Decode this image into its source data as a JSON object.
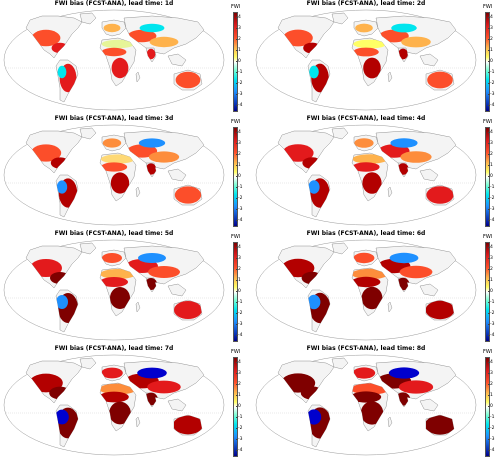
{
  "colorbar": {
    "label": "FWI",
    "ticks": [
      "4",
      "3",
      "2",
      "1",
      "0",
      "-1",
      "-2",
      "-3",
      "-4"
    ],
    "colors": [
      "#7f0000",
      "#b30000",
      "#e31a1c",
      "#fc4e2a",
      "#fd8d3c",
      "#feb24c",
      "#fed976",
      "#ffff66",
      "#e6f598",
      "#ffffff",
      "#7fffd4",
      "#00e5ee",
      "#1e90ff",
      "#0000cd",
      "#000080"
    ]
  },
  "panels": [
    {
      "title": "FWI bias (FCST-ANA), lead time: 1d",
      "lead": 1
    },
    {
      "title": "FWI bias (FCST-ANA), lead time: 2d",
      "lead": 2
    },
    {
      "title": "FWI bias (FCST-ANA), lead time: 3d",
      "lead": 3
    },
    {
      "title": "FWI bias (FCST-ANA), lead time: 4d",
      "lead": 4
    },
    {
      "title": "FWI bias (FCST-ANA), lead time: 5d",
      "lead": 5
    },
    {
      "title": "FWI bias (FCST-ANA), lead time: 6d",
      "lead": 6
    },
    {
      "title": "FWI bias (FCST-ANA), lead time: 7d",
      "lead": 7
    },
    {
      "title": "FWI bias (FCST-ANA), lead time: 8d",
      "lead": 8
    }
  ]
}
